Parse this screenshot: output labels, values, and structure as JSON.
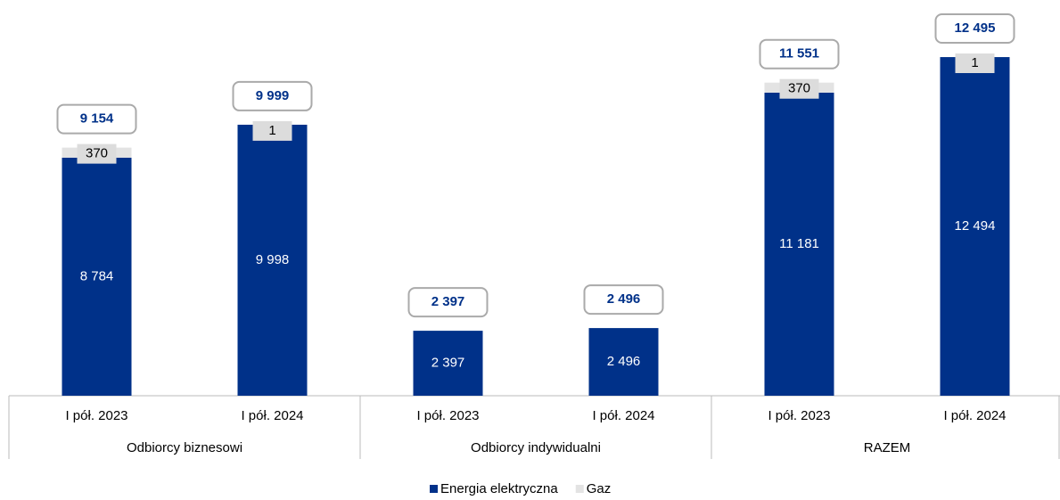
{
  "chart_data": {
    "type": "stacked_bar",
    "categories": [
      "I pół. 2023",
      "I pół. 2024",
      "I pół. 2023",
      "I pół. 2024",
      "I pół. 2023",
      "I pół. 2024"
    ],
    "groups": [
      "Odbiorcy biznesowi",
      "Odbiorcy indywidualni",
      "RAZEM"
    ],
    "series": [
      {
        "name": "Energia elektryczna",
        "color": "#003189",
        "values": [
          8784,
          9998,
          2397,
          2496,
          11181,
          12494
        ],
        "value_labels": [
          "8 784",
          "9 998",
          "2 397",
          "2 496",
          "11 181",
          "12 494"
        ]
      },
      {
        "name": "Gaz",
        "color": "#e3e3e3",
        "values": [
          370,
          1,
          null,
          null,
          370,
          1
        ]
      }
    ],
    "totals": {
      "values": [
        9154,
        9999,
        2397,
        2496,
        11551,
        12495
      ],
      "value_labels": [
        "9 154",
        "9 999",
        "2 397",
        "2 496",
        "11 551",
        "12 495"
      ]
    }
  }
}
